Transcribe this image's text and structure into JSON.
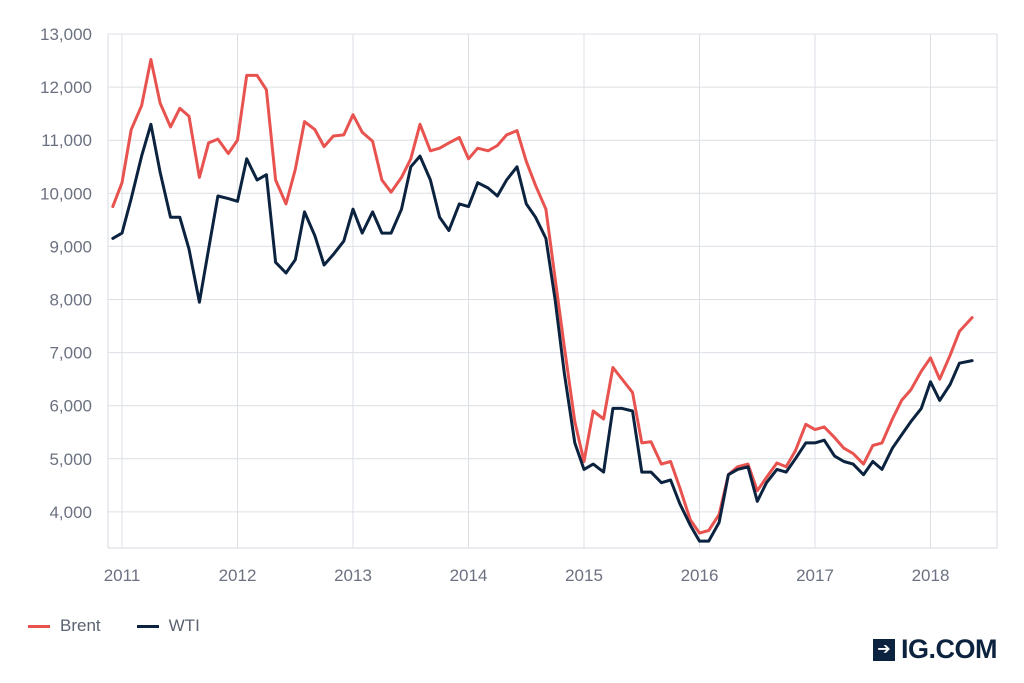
{
  "chart_data": {
    "type": "line",
    "title": "",
    "xlabel": "",
    "ylabel": "",
    "ylim": [
      3300,
      13000
    ],
    "yticks": [
      4000,
      5000,
      6000,
      7000,
      8000,
      9000,
      10000,
      11000,
      12000,
      13000
    ],
    "ytick_labels": [
      "4,000",
      "5,000",
      "6,000",
      "7,000",
      "8,000",
      "9,000",
      "10,000",
      "11,000",
      "12,000",
      "13,000"
    ],
    "xlim": [
      2010.92,
      2018.62
    ],
    "xticks": [
      2011,
      2012,
      2013,
      2014,
      2015,
      2016,
      2017,
      2018
    ],
    "xtick_labels": [
      "2011",
      "2012",
      "2013",
      "2014",
      "2015",
      "2016",
      "2017",
      "2018"
    ],
    "grid": true,
    "legend_position": "bottom-left",
    "series": [
      {
        "name": "Brent",
        "color": "#e8534f",
        "points": [
          [
            2010.92,
            9750
          ],
          [
            2011.0,
            10200
          ],
          [
            2011.08,
            11200
          ],
          [
            2011.17,
            11650
          ],
          [
            2011.25,
            12520
          ],
          [
            2011.33,
            11700
          ],
          [
            2011.42,
            11250
          ],
          [
            2011.5,
            11600
          ],
          [
            2011.58,
            11450
          ],
          [
            2011.67,
            10300
          ],
          [
            2011.75,
            10950
          ],
          [
            2011.83,
            11020
          ],
          [
            2011.92,
            10750
          ],
          [
            2012.0,
            11000
          ],
          [
            2012.08,
            12220
          ],
          [
            2012.17,
            12220
          ],
          [
            2012.25,
            11950
          ],
          [
            2012.33,
            10250
          ],
          [
            2012.42,
            9800
          ],
          [
            2012.5,
            10450
          ],
          [
            2012.58,
            11350
          ],
          [
            2012.67,
            11200
          ],
          [
            2012.75,
            10880
          ],
          [
            2012.83,
            11080
          ],
          [
            2012.92,
            11100
          ],
          [
            2013.0,
            11480
          ],
          [
            2013.08,
            11150
          ],
          [
            2013.17,
            10980
          ],
          [
            2013.25,
            10250
          ],
          [
            2013.33,
            10020
          ],
          [
            2013.42,
            10300
          ],
          [
            2013.5,
            10650
          ],
          [
            2013.58,
            11300
          ],
          [
            2013.67,
            10800
          ],
          [
            2013.75,
            10850
          ],
          [
            2013.83,
            10950
          ],
          [
            2013.92,
            11050
          ],
          [
            2014.0,
            10650
          ],
          [
            2014.08,
            10850
          ],
          [
            2014.17,
            10800
          ],
          [
            2014.25,
            10900
          ],
          [
            2014.33,
            11100
          ],
          [
            2014.42,
            11180
          ],
          [
            2014.5,
            10600
          ],
          [
            2014.58,
            10150
          ],
          [
            2014.67,
            9700
          ],
          [
            2014.75,
            8400
          ],
          [
            2014.83,
            7100
          ],
          [
            2014.92,
            5700
          ],
          [
            2015.0,
            4950
          ],
          [
            2015.08,
            5900
          ],
          [
            2015.17,
            5750
          ],
          [
            2015.25,
            6720
          ],
          [
            2015.33,
            6500
          ],
          [
            2015.42,
            6250
          ],
          [
            2015.5,
            5300
          ],
          [
            2015.58,
            5320
          ],
          [
            2015.67,
            4900
          ],
          [
            2015.75,
            4950
          ],
          [
            2015.83,
            4450
          ],
          [
            2015.92,
            3850
          ],
          [
            2016.0,
            3600
          ],
          [
            2016.08,
            3650
          ],
          [
            2016.17,
            3950
          ],
          [
            2016.25,
            4700
          ],
          [
            2016.33,
            4850
          ],
          [
            2016.42,
            4900
          ],
          [
            2016.5,
            4400
          ],
          [
            2016.58,
            4650
          ],
          [
            2016.67,
            4920
          ],
          [
            2016.75,
            4850
          ],
          [
            2016.83,
            5150
          ],
          [
            2016.92,
            5650
          ],
          [
            2017.0,
            5550
          ],
          [
            2017.08,
            5600
          ],
          [
            2017.17,
            5400
          ],
          [
            2017.25,
            5200
          ],
          [
            2017.33,
            5100
          ],
          [
            2017.42,
            4900
          ],
          [
            2017.5,
            5250
          ],
          [
            2017.58,
            5300
          ],
          [
            2017.67,
            5750
          ],
          [
            2017.75,
            6100
          ],
          [
            2017.83,
            6300
          ],
          [
            2017.92,
            6650
          ],
          [
            2018.0,
            6900
          ],
          [
            2018.08,
            6500
          ],
          [
            2018.17,
            6950
          ],
          [
            2018.25,
            7400
          ],
          [
            2018.36,
            7660
          ]
        ]
      },
      {
        "name": "WTI",
        "color": "#0c2340",
        "points": [
          [
            2010.92,
            9150
          ],
          [
            2011.0,
            9250
          ],
          [
            2011.08,
            9900
          ],
          [
            2011.17,
            10700
          ],
          [
            2011.25,
            11300
          ],
          [
            2011.33,
            10400
          ],
          [
            2011.42,
            9550
          ],
          [
            2011.5,
            9550
          ],
          [
            2011.58,
            8950
          ],
          [
            2011.67,
            7950
          ],
          [
            2011.75,
            8950
          ],
          [
            2011.83,
            9950
          ],
          [
            2011.92,
            9900
          ],
          [
            2012.0,
            9850
          ],
          [
            2012.08,
            10650
          ],
          [
            2012.17,
            10250
          ],
          [
            2012.25,
            10350
          ],
          [
            2012.33,
            8700
          ],
          [
            2012.42,
            8500
          ],
          [
            2012.5,
            8750
          ],
          [
            2012.58,
            9650
          ],
          [
            2012.67,
            9200
          ],
          [
            2012.75,
            8650
          ],
          [
            2012.83,
            8850
          ],
          [
            2012.92,
            9100
          ],
          [
            2013.0,
            9700
          ],
          [
            2013.08,
            9250
          ],
          [
            2013.17,
            9650
          ],
          [
            2013.25,
            9250
          ],
          [
            2013.33,
            9250
          ],
          [
            2013.42,
            9700
          ],
          [
            2013.5,
            10500
          ],
          [
            2013.58,
            10700
          ],
          [
            2013.67,
            10250
          ],
          [
            2013.75,
            9550
          ],
          [
            2013.83,
            9300
          ],
          [
            2013.92,
            9800
          ],
          [
            2014.0,
            9750
          ],
          [
            2014.08,
            10200
          ],
          [
            2014.17,
            10100
          ],
          [
            2014.25,
            9950
          ],
          [
            2014.33,
            10250
          ],
          [
            2014.42,
            10500
          ],
          [
            2014.5,
            9800
          ],
          [
            2014.58,
            9550
          ],
          [
            2014.67,
            9150
          ],
          [
            2014.75,
            8000
          ],
          [
            2014.83,
            6600
          ],
          [
            2014.92,
            5300
          ],
          [
            2015.0,
            4800
          ],
          [
            2015.08,
            4900
          ],
          [
            2015.17,
            4750
          ],
          [
            2015.25,
            5950
          ],
          [
            2015.33,
            5950
          ],
          [
            2015.42,
            5900
          ],
          [
            2015.5,
            4750
          ],
          [
            2015.58,
            4750
          ],
          [
            2015.67,
            4550
          ],
          [
            2015.75,
            4600
          ],
          [
            2015.83,
            4150
          ],
          [
            2015.92,
            3750
          ],
          [
            2016.0,
            3450
          ],
          [
            2016.08,
            3450
          ],
          [
            2016.17,
            3800
          ],
          [
            2016.25,
            4700
          ],
          [
            2016.33,
            4800
          ],
          [
            2016.42,
            4850
          ],
          [
            2016.5,
            4200
          ],
          [
            2016.58,
            4550
          ],
          [
            2016.67,
            4800
          ],
          [
            2016.75,
            4750
          ],
          [
            2016.83,
            5000
          ],
          [
            2016.92,
            5300
          ],
          [
            2017.0,
            5300
          ],
          [
            2017.08,
            5350
          ],
          [
            2017.17,
            5050
          ],
          [
            2017.25,
            4950
          ],
          [
            2017.33,
            4900
          ],
          [
            2017.42,
            4700
          ],
          [
            2017.5,
            4950
          ],
          [
            2017.58,
            4800
          ],
          [
            2017.67,
            5200
          ],
          [
            2017.75,
            5450
          ],
          [
            2017.83,
            5700
          ],
          [
            2017.92,
            5950
          ],
          [
            2018.0,
            6450
          ],
          [
            2018.08,
            6100
          ],
          [
            2018.17,
            6400
          ],
          [
            2018.25,
            6800
          ],
          [
            2018.36,
            6850
          ]
        ]
      }
    ]
  },
  "legend": {
    "items": [
      {
        "label": "Brent",
        "color": "#e8534f"
      },
      {
        "label": "WTI",
        "color": "#0c2340"
      }
    ]
  },
  "brand": {
    "icon": "arrow-right-icon",
    "icon_glyph": "➔",
    "name": "IG.COM"
  }
}
